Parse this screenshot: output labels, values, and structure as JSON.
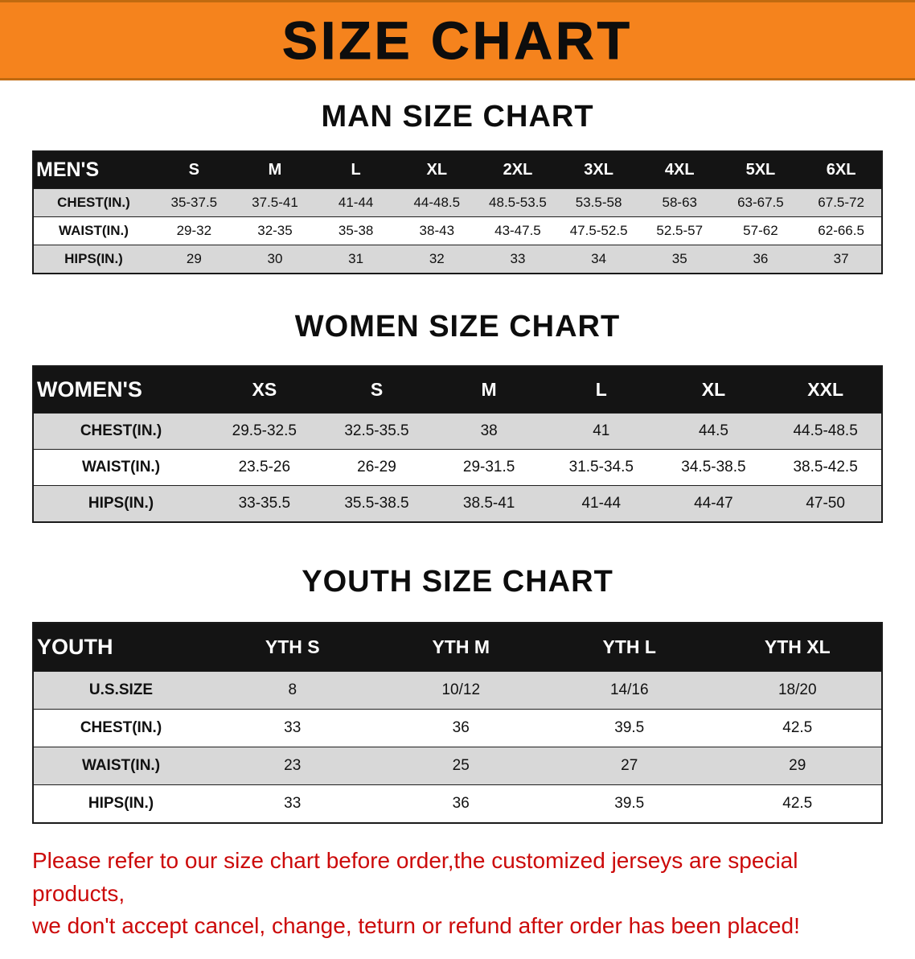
{
  "banner": {
    "title": "SIZE CHART"
  },
  "colors": {
    "banner_bg": "#f5831d",
    "banner_edge": "#c06a10",
    "header_bar": "#141414",
    "row_alt": "#d8d8d8",
    "footer_red": "#cc0a0a",
    "ink": "#111111"
  },
  "sections": [
    {
      "heading": "MAN SIZE CHART",
      "table": {
        "corner_label": "MEN'S",
        "columns": [
          "S",
          "M",
          "L",
          "XL",
          "2XL",
          "3XL",
          "4XL",
          "5XL",
          "6XL"
        ],
        "rows": [
          {
            "label": "CHEST(IN.)",
            "values": [
              "35-37.5",
              "37.5-41",
              "41-44",
              "44-48.5",
              "48.5-53.5",
              "53.5-58",
              "58-63",
              "63-67.5",
              "67.5-72"
            ]
          },
          {
            "label": "WAIST(IN.)",
            "values": [
              "29-32",
              "32-35",
              "35-38",
              "38-43",
              "43-47.5",
              "47.5-52.5",
              "52.5-57",
              "57-62",
              "62-66.5"
            ]
          },
          {
            "label": "HIPS(IN.)",
            "values": [
              "29",
              "30",
              "31",
              "32",
              "33",
              "34",
              "35",
              "36",
              "37"
            ]
          }
        ]
      }
    },
    {
      "heading": "WOMEN SIZE CHART",
      "table": {
        "corner_label": "WOMEN'S",
        "columns": [
          "XS",
          "S",
          "M",
          "L",
          "XL",
          "XXL"
        ],
        "rows": [
          {
            "label": "CHEST(IN.)",
            "values": [
              "29.5-32.5",
              "32.5-35.5",
              "38",
              "41",
              "44.5",
              "44.5-48.5"
            ]
          },
          {
            "label": "WAIST(IN.)",
            "values": [
              "23.5-26",
              "26-29",
              "29-31.5",
              "31.5-34.5",
              "34.5-38.5",
              "38.5-42.5"
            ]
          },
          {
            "label": "HIPS(IN.)",
            "values": [
              "33-35.5",
              "35.5-38.5",
              "38.5-41",
              "41-44",
              "44-47",
              "47-50"
            ]
          }
        ]
      }
    },
    {
      "heading": "YOUTH SIZE CHART",
      "table": {
        "corner_label": "YOUTH",
        "columns": [
          "YTH S",
          "YTH M",
          "YTH L",
          "YTH XL"
        ],
        "rows": [
          {
            "label": "U.S.SIZE",
            "values": [
              "8",
              "10/12",
              "14/16",
              "18/20"
            ]
          },
          {
            "label": "CHEST(IN.)",
            "values": [
              "33",
              "36",
              "39.5",
              "42.5"
            ]
          },
          {
            "label": "WAIST(IN.)",
            "values": [
              "23",
              "25",
              "27",
              "29"
            ]
          },
          {
            "label": "HIPS(IN.)",
            "values": [
              "33",
              "36",
              "39.5",
              "42.5"
            ]
          }
        ]
      }
    }
  ],
  "footer": {
    "line1": "Please refer to our size chart before order,the customized jerseys are special products,",
    "line2": "we don't accept cancel, change, teturn or refund after order has been placed!"
  }
}
